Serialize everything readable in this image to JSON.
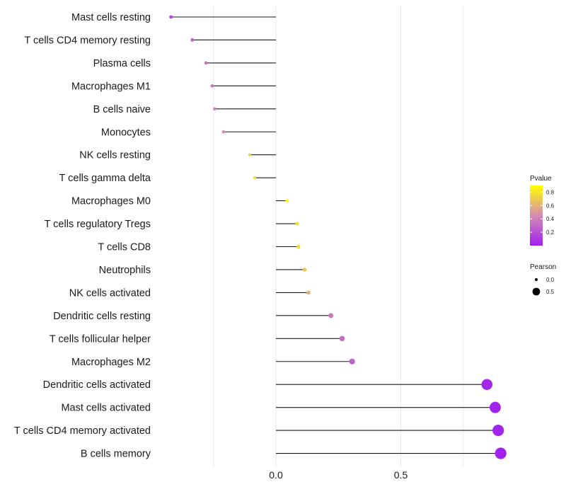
{
  "chart_data": {
    "type": "lollipop",
    "title": "",
    "xlabel": "",
    "ylabel": "",
    "xlim": [
      -0.5,
      0.9
    ],
    "grid": true,
    "x_ticks": [
      {
        "value": 0.0,
        "label": "0.0"
      },
      {
        "value": 0.5,
        "label": "0.5"
      }
    ],
    "x_minor_grid": [
      -0.25,
      0.75
    ],
    "series": [
      {
        "name": "Mast cells resting",
        "pearson": -0.42,
        "pvalue": 0.18
      },
      {
        "name": "T cells CD4 memory resting",
        "pearson": -0.335,
        "pvalue": 0.25
      },
      {
        "name": "Plasma cells",
        "pearson": -0.28,
        "pvalue": 0.32
      },
      {
        "name": "Macrophages M1",
        "pearson": -0.255,
        "pvalue": 0.36
      },
      {
        "name": "B cells naive",
        "pearson": -0.245,
        "pvalue": 0.4
      },
      {
        "name": "Monocytes",
        "pearson": -0.21,
        "pvalue": 0.45
      },
      {
        "name": "NK cells resting",
        "pearson": -0.105,
        "pvalue": 0.72
      },
      {
        "name": "T cells gamma delta",
        "pearson": -0.085,
        "pvalue": 0.75
      },
      {
        "name": "Macrophages M0",
        "pearson": 0.045,
        "pvalue": 0.9
      },
      {
        "name": "T cells regulatory  Tregs ",
        "pearson": 0.085,
        "pvalue": 0.78
      },
      {
        "name": "T cells CD8",
        "pearson": 0.09,
        "pvalue": 0.76
      },
      {
        "name": "Neutrophils",
        "pearson": 0.115,
        "pvalue": 0.68
      },
      {
        "name": "NK cells activated",
        "pearson": 0.13,
        "pvalue": 0.6
      },
      {
        "name": "Dendritic cells resting",
        "pearson": 0.22,
        "pvalue": 0.38
      },
      {
        "name": "T cells follicular helper",
        "pearson": 0.265,
        "pvalue": 0.32
      },
      {
        "name": "Macrophages M2",
        "pearson": 0.305,
        "pvalue": 0.27
      },
      {
        "name": "Dendritic cells activated",
        "pearson": 0.845,
        "pvalue": 0.03
      },
      {
        "name": "Mast cells activated",
        "pearson": 0.878,
        "pvalue": 0.02
      },
      {
        "name": "T cells CD4 memory activated",
        "pearson": 0.89,
        "pvalue": 0.02
      },
      {
        "name": "B cells memory",
        "pearson": 0.9,
        "pvalue": 0.01
      }
    ],
    "legend": {
      "placement": "right",
      "color": {
        "title": "Pvalue",
        "ticks": [
          0.8,
          0.6,
          0.4,
          0.2
        ],
        "tick_labels": [
          "0.8",
          "0.6",
          "0.4",
          "0.2"
        ],
        "range": [
          0.0,
          0.9
        ],
        "low_color": "#a020f0",
        "mid_color": "#d58bb4",
        "high_color": "#ffff00"
      },
      "size": {
        "title": "Pearson",
        "entries": [
          {
            "value": 0.0,
            "label": "0.0"
          },
          {
            "value": 0.5,
            "label": "0.5"
          }
        ]
      }
    }
  }
}
